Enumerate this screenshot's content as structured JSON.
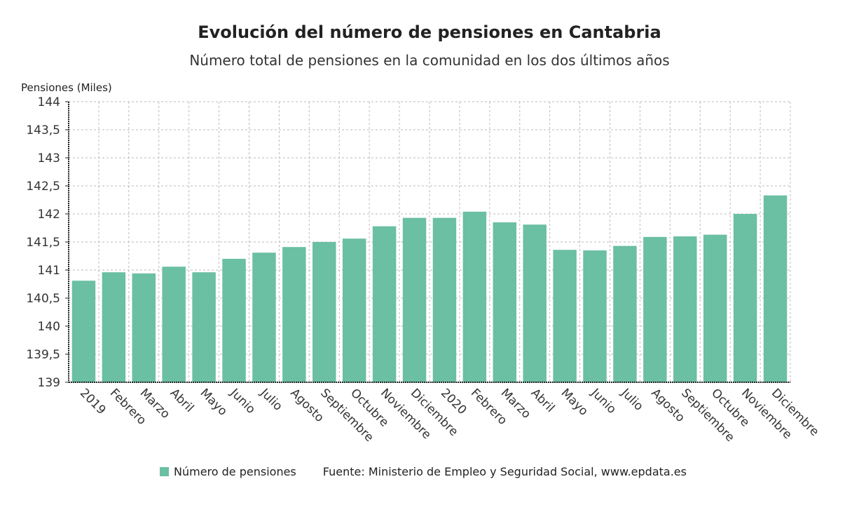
{
  "chart_data": {
    "type": "bar",
    "title": "Evolución del número de pensiones en Cantabria",
    "subtitle": "Número total de pensiones en la comunidad en los dos últimos años",
    "ylabel": "Pensiones (Miles)",
    "ylim": [
      139,
      144
    ],
    "yticks": [
      "139",
      "139,5",
      "140",
      "140,5",
      "141",
      "141,5",
      "142",
      "142,5",
      "143",
      "143,5",
      "144"
    ],
    "grid": true,
    "categories": [
      "2019",
      "Febrero",
      "Marzo",
      "Abril",
      "Mayo",
      "Junio",
      "Julio",
      "Agosto",
      "Septiembre",
      "Octubre",
      "Noviembre",
      "Diciembre",
      "2020",
      "Febrero",
      "Marzo",
      "Abril",
      "Mayo",
      "Junio",
      "Julio",
      "Agosto",
      "Septiembre",
      "Octubre",
      "Noviembre",
      "Diciembre"
    ],
    "series": [
      {
        "name": "Número de pensiones",
        "color": "#6bbfa3",
        "values": [
          140.81,
          140.96,
          140.94,
          141.06,
          140.96,
          141.2,
          141.31,
          141.41,
          141.5,
          141.56,
          141.78,
          141.93,
          141.93,
          142.04,
          141.85,
          141.81,
          141.36,
          141.35,
          141.43,
          141.59,
          141.6,
          141.63,
          142.0,
          142.33
        ]
      }
    ],
    "legend_placement": "bottom",
    "source": "Fuente: Ministerio de Empleo y Seguridad Social, www.epdata.es"
  }
}
